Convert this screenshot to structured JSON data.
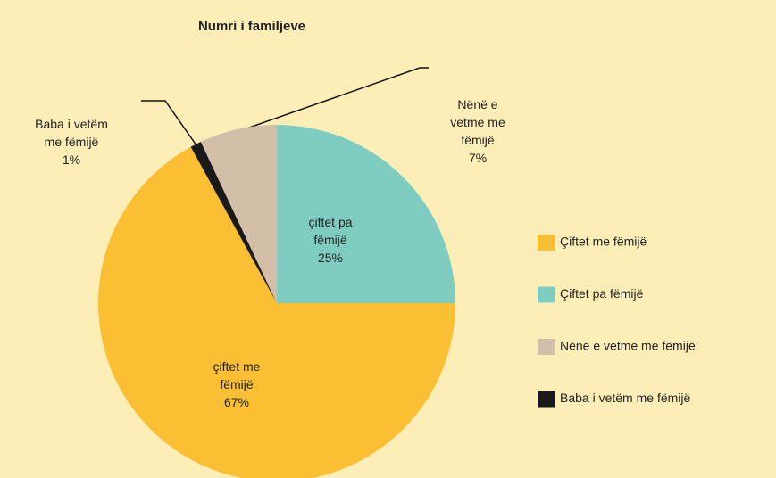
{
  "chart_data": {
    "type": "pie",
    "title": "Numri i familjeve",
    "categories": [
      "Çiftet me fëmijë",
      "Çiftet pa fëmijë",
      "Nënë e vetme me fëmijë",
      "Baba i vetëm  me fëmijë"
    ],
    "labels": [
      [
        "çiftet me",
        "fëmijë"
      ],
      [
        "çiftet pa",
        "fëmijë"
      ],
      [
        "Nënë e",
        "vetme me",
        "fëmijë"
      ],
      [
        "Baba i vetëm",
        "me fëmijë"
      ]
    ],
    "values": [
      67,
      25,
      7,
      1
    ],
    "value_labels": [
      "67%",
      "25%",
      "7%",
      "1%"
    ],
    "colors": [
      "#fbbf33",
      "#7ecdc0",
      "#d3bfa8",
      "#1a1a1a"
    ]
  }
}
